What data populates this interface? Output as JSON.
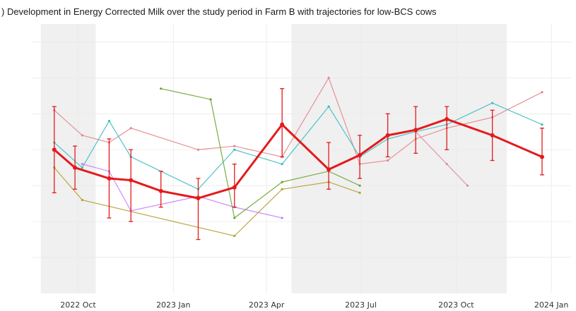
{
  "title": ") Development in Energy Corrected Milk over the study period in Farm B with trajectories for low-BCS cows",
  "colors": {
    "mean_line": "#e41a1c",
    "shading": "#f0f0f0",
    "grid": "#e9e9e9"
  },
  "chart_data": {
    "type": "line",
    "title": ") Development in Energy Corrected Milk over the study period in Farm B with trajectories for low-BCS cows",
    "xlabel": "",
    "ylabel": "",
    "x_ticks": [
      "2022 Oct",
      "2023 Jan",
      "2023 Apr",
      "2023 Jul",
      "2023 Oct",
      "2024 Jan"
    ],
    "x_tick_dates": [
      "2022-10-01",
      "2023-01-01",
      "2023-04-01",
      "2023-07-01",
      "2023-10-01",
      "2024-01-01"
    ],
    "xlim": [
      "2022-08-18",
      "2024-01-20"
    ],
    "ylim": [
      0,
      75
    ],
    "grid": true,
    "shaded_periods": [
      {
        "start": "2022-08-26",
        "end": "2022-10-18"
      },
      {
        "start": "2023-04-25",
        "end": "2023-11-19"
      }
    ],
    "mean_series": {
      "dates": [
        "2022-09-08",
        "2022-09-28",
        "2022-10-31",
        "2022-11-21",
        "2022-12-20",
        "2023-01-25",
        "2023-03-01",
        "2023-04-16",
        "2023-05-31",
        "2023-06-30",
        "2023-07-27",
        "2023-08-23",
        "2023-09-22",
        "2023-11-05",
        "2023-12-23"
      ],
      "mean": [
        40,
        35,
        32,
        31.5,
        28.5,
        26.5,
        29.5,
        47,
        34.5,
        38.5,
        44,
        45.5,
        48.5,
        44,
        38
      ],
      "upper": [
        52,
        41,
        43,
        40,
        34,
        32,
        36,
        57,
        42,
        44,
        50,
        52,
        52,
        51,
        46
      ],
      "lower": [
        28,
        29,
        21,
        20,
        24,
        15,
        24,
        38,
        29,
        32,
        38,
        39,
        40,
        37,
        33
      ]
    },
    "trajectories": [
      {
        "color": "#e6848b",
        "dates": [
          "2022-09-08",
          "2022-10-05",
          "2022-10-31",
          "2022-11-21",
          "2023-01-25",
          "2023-03-01",
          "2023-04-16",
          "2023-05-31",
          "2023-06-30",
          "2023-07-27",
          "2023-08-23",
          "2023-09-22",
          "2023-11-05",
          "2023-12-23"
        ],
        "values": [
          51,
          44,
          42,
          46,
          40,
          41,
          38,
          60,
          36,
          37,
          43,
          46,
          49,
          56
        ]
      },
      {
        "color": "#3cbcc0",
        "dates": [
          "2022-09-08",
          "2022-10-05",
          "2022-10-31",
          "2022-11-21",
          "2023-01-25",
          "2023-03-01",
          "2023-04-16",
          "2023-05-31",
          "2023-06-30",
          "2023-07-27",
          "2023-08-23",
          "2023-09-22",
          "2023-11-05",
          "2023-12-23"
        ],
        "values": [
          42,
          35,
          48,
          38,
          29,
          40,
          36,
          52,
          38,
          43,
          45,
          47,
          53,
          47
        ]
      },
      {
        "color": "#c77cff",
        "dates": [
          "2022-10-05",
          "2022-10-31",
          "2022-11-21",
          "2023-01-25",
          "2023-03-01",
          "2023-04-16"
        ],
        "values": [
          36,
          34,
          23,
          27,
          24,
          21
        ]
      },
      {
        "color": "#6aa42f",
        "dates": [
          "2022-12-20",
          "2023-02-06",
          "2023-03-01",
          "2023-04-16",
          "2023-05-31",
          "2023-06-30"
        ],
        "values": [
          57,
          54,
          21,
          31,
          34,
          30
        ]
      },
      {
        "color": "#b5a030",
        "dates": [
          "2022-09-08",
          "2022-10-05",
          "2023-03-01",
          "2023-04-16",
          "2023-05-31",
          "2023-06-30"
        ],
        "values": [
          35,
          26,
          16,
          29,
          31,
          28
        ]
      },
      {
        "color": "#e08aa3",
        "dates": [
          "2023-08-23",
          "2023-09-22",
          "2023-10-12"
        ],
        "values": [
          45,
          36,
          30
        ]
      }
    ]
  }
}
